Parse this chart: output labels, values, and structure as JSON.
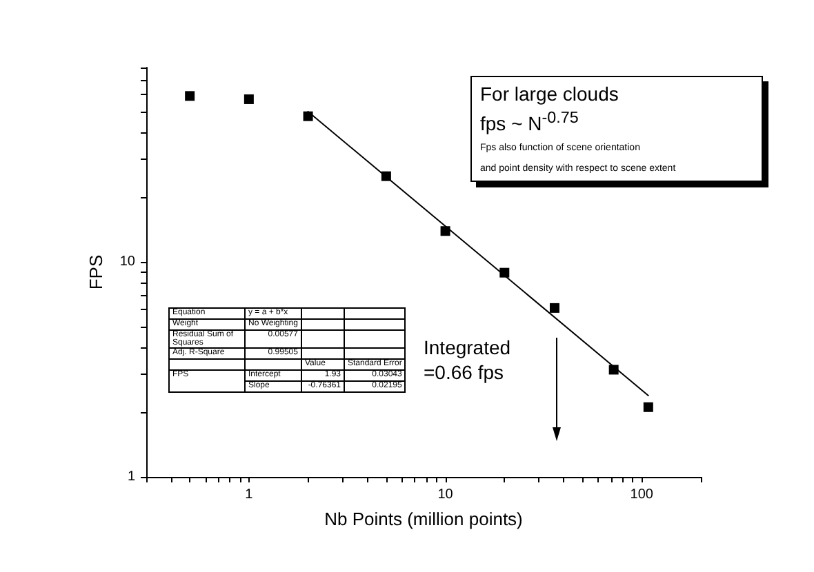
{
  "chart_data": {
    "type": "scatter",
    "xlabel": "Nb Points (million points)",
    "ylabel": "FPS",
    "log": "xy",
    "xlim": [
      0.3,
      200
    ],
    "ylim": [
      1,
      80
    ],
    "xticks": [
      {
        "value": 0.3,
        "label": null
      },
      {
        "value": 0.4,
        "label": null
      },
      {
        "value": 0.5,
        "label": null
      },
      {
        "value": 0.6,
        "label": null
      },
      {
        "value": 0.7,
        "label": null
      },
      {
        "value": 0.8,
        "label": null
      },
      {
        "value": 0.9,
        "label": null
      },
      1,
      {
        "value": 2,
        "label": null
      },
      {
        "value": 3,
        "label": null
      },
      {
        "value": 4,
        "label": null
      },
      {
        "value": 5,
        "label": null
      },
      {
        "value": 6,
        "label": null
      },
      {
        "value": 7,
        "label": null
      },
      {
        "value": 8,
        "label": null
      },
      {
        "value": 9,
        "label": null
      },
      10,
      {
        "value": 20,
        "label": null
      },
      {
        "value": 30,
        "label": null
      },
      {
        "value": 40,
        "label": null
      },
      {
        "value": 50,
        "label": null
      },
      {
        "value": 60,
        "label": null
      },
      {
        "value": 70,
        "label": null
      },
      {
        "value": 80,
        "label": null
      },
      {
        "value": 90,
        "label": null
      },
      100,
      {
        "value": 200,
        "label": null
      }
    ],
    "yticks": [
      1,
      {
        "value": 2,
        "label": null
      },
      {
        "value": 3,
        "label": null
      },
      {
        "value": 4,
        "label": null
      },
      {
        "value": 5,
        "label": null
      },
      {
        "value": 6,
        "label": null
      },
      {
        "value": 7,
        "label": null
      },
      {
        "value": 8,
        "label": null
      },
      {
        "value": 9,
        "label": null
      },
      10,
      {
        "value": 20,
        "label": null
      },
      {
        "value": 30,
        "label": null
      },
      {
        "value": 40,
        "label": null
      },
      {
        "value": 50,
        "label": null
      },
      {
        "value": 60,
        "label": null
      },
      {
        "value": 70,
        "label": null
      },
      {
        "value": 80,
        "label": null
      }
    ],
    "marker": "square",
    "grid": false,
    "series": [
      {
        "color": "#000000",
        "x": [
          0.5,
          1,
          2,
          5,
          10,
          20,
          36,
          72,
          108
        ],
        "values": [
          59,
          57,
          47.5,
          25,
          13.9,
          8.9,
          6.1,
          3.15,
          2.11
        ]
      },
      {
        "type": "line",
        "color": "#000000",
        "marker": "none",
        "x": [
          2,
          108
        ],
        "values": [
          49.9,
          2.39
        ]
      }
    ],
    "annotations": [
      "For large clouds",
      "fps ~ N$^{-0.75}$",
      "Fps also function of scene orientation",
      "and point density with respect to scene extent",
      "Integrated",
      "=0.66 fps",
      "Equation",
      "y = a + b*x",
      "Weight",
      "No Weighting",
      "Residual Sum of Squares",
      "0.00577",
      "Adj. R-Square",
      "0.99505",
      "Value",
      "Standard Error",
      "FPS",
      "Intercept",
      "1.93",
      "0.03043",
      "Slope",
      "-0.76361",
      "0.02195"
    ]
  }
}
